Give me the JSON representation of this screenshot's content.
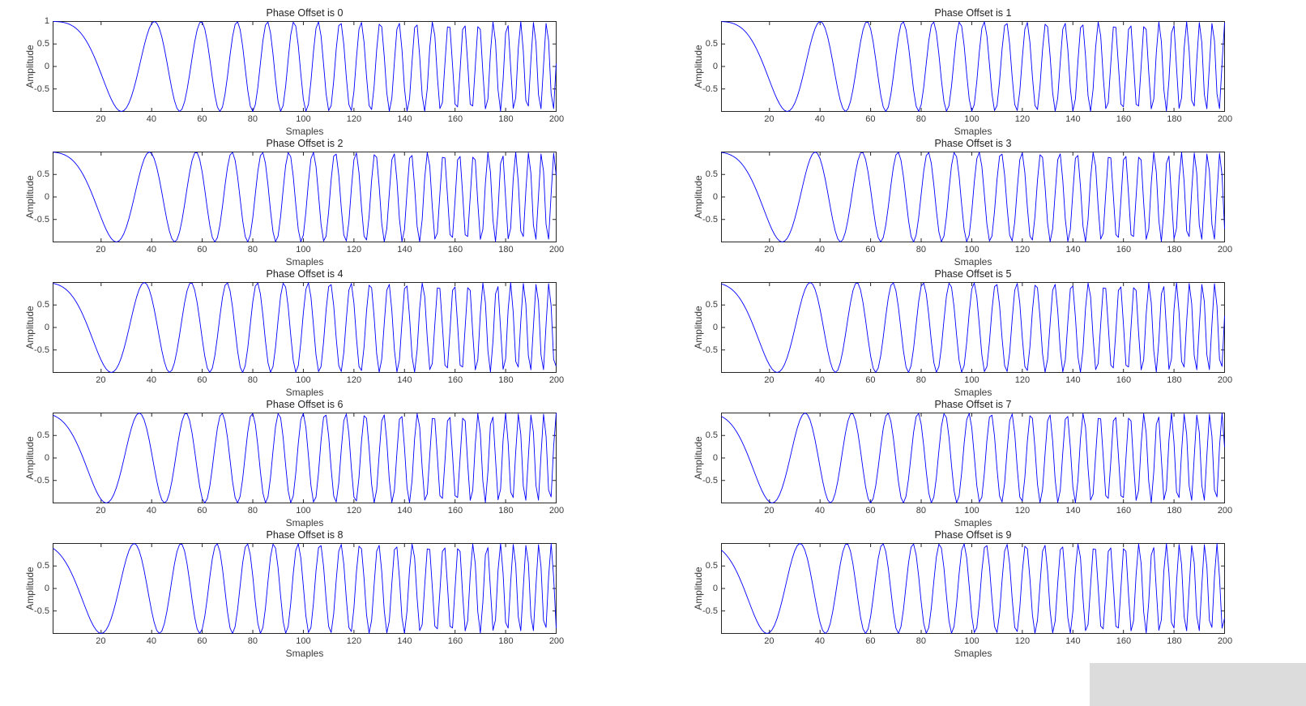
{
  "page": {
    "background": "#ffffff",
    "artifact_color": "#dcdcdc"
  },
  "chart_data": {
    "type": "line",
    "layout": {
      "rows": 5,
      "cols": 2,
      "fill_order": "row-major"
    },
    "xlabel": "Smaples",
    "ylabel": "Amplitude",
    "x_range": [
      1,
      200
    ],
    "ylim": [
      -1,
      1
    ],
    "xticks": [
      20,
      40,
      60,
      80,
      100,
      120,
      140,
      160,
      180,
      200
    ],
    "line_color": "#0000FF",
    "axis_color": "#262626",
    "grid": false,
    "legend": "none",
    "signal": {
      "kind": "linear-chirp",
      "formula": "y = cos(2*pi*(f0*(t+p) + (k/2)*(t+p)^2)), t = 1..200 samples, p = phase offset",
      "f0": 0.0038,
      "k": 0.001,
      "samples": 200,
      "amplitude": 1
    },
    "subplots": [
      {
        "title": "Phase Offset is 0",
        "phase_offset": 0,
        "yticks": [
          1,
          0.5,
          0,
          -0.5
        ]
      },
      {
        "title": "Phase Offset is 1",
        "phase_offset": 1,
        "yticks": [
          0.5,
          0,
          -0.5
        ]
      },
      {
        "title": "Phase Offset is 2",
        "phase_offset": 2,
        "yticks": [
          0.5,
          0,
          -0.5
        ]
      },
      {
        "title": "Phase Offset is 3",
        "phase_offset": 3,
        "yticks": [
          0.5,
          0,
          -0.5
        ]
      },
      {
        "title": "Phase Offset is 4",
        "phase_offset": 4,
        "yticks": [
          0.5,
          0,
          -0.5
        ]
      },
      {
        "title": "Phase Offset is 5",
        "phase_offset": 5,
        "yticks": [
          0.5,
          0,
          -0.5
        ]
      },
      {
        "title": "Phase Offset is 6",
        "phase_offset": 6,
        "yticks": [
          0.5,
          0,
          -0.5
        ]
      },
      {
        "title": "Phase Offset is 7",
        "phase_offset": 7,
        "yticks": [
          0.5,
          0,
          -0.5
        ]
      },
      {
        "title": "Phase Offset is 8",
        "phase_offset": 8,
        "yticks": [
          0.5,
          0,
          -0.5
        ]
      },
      {
        "title": "Phase Offset is 9",
        "phase_offset": 9,
        "yticks": [
          0.5,
          0,
          -0.5
        ]
      }
    ]
  }
}
